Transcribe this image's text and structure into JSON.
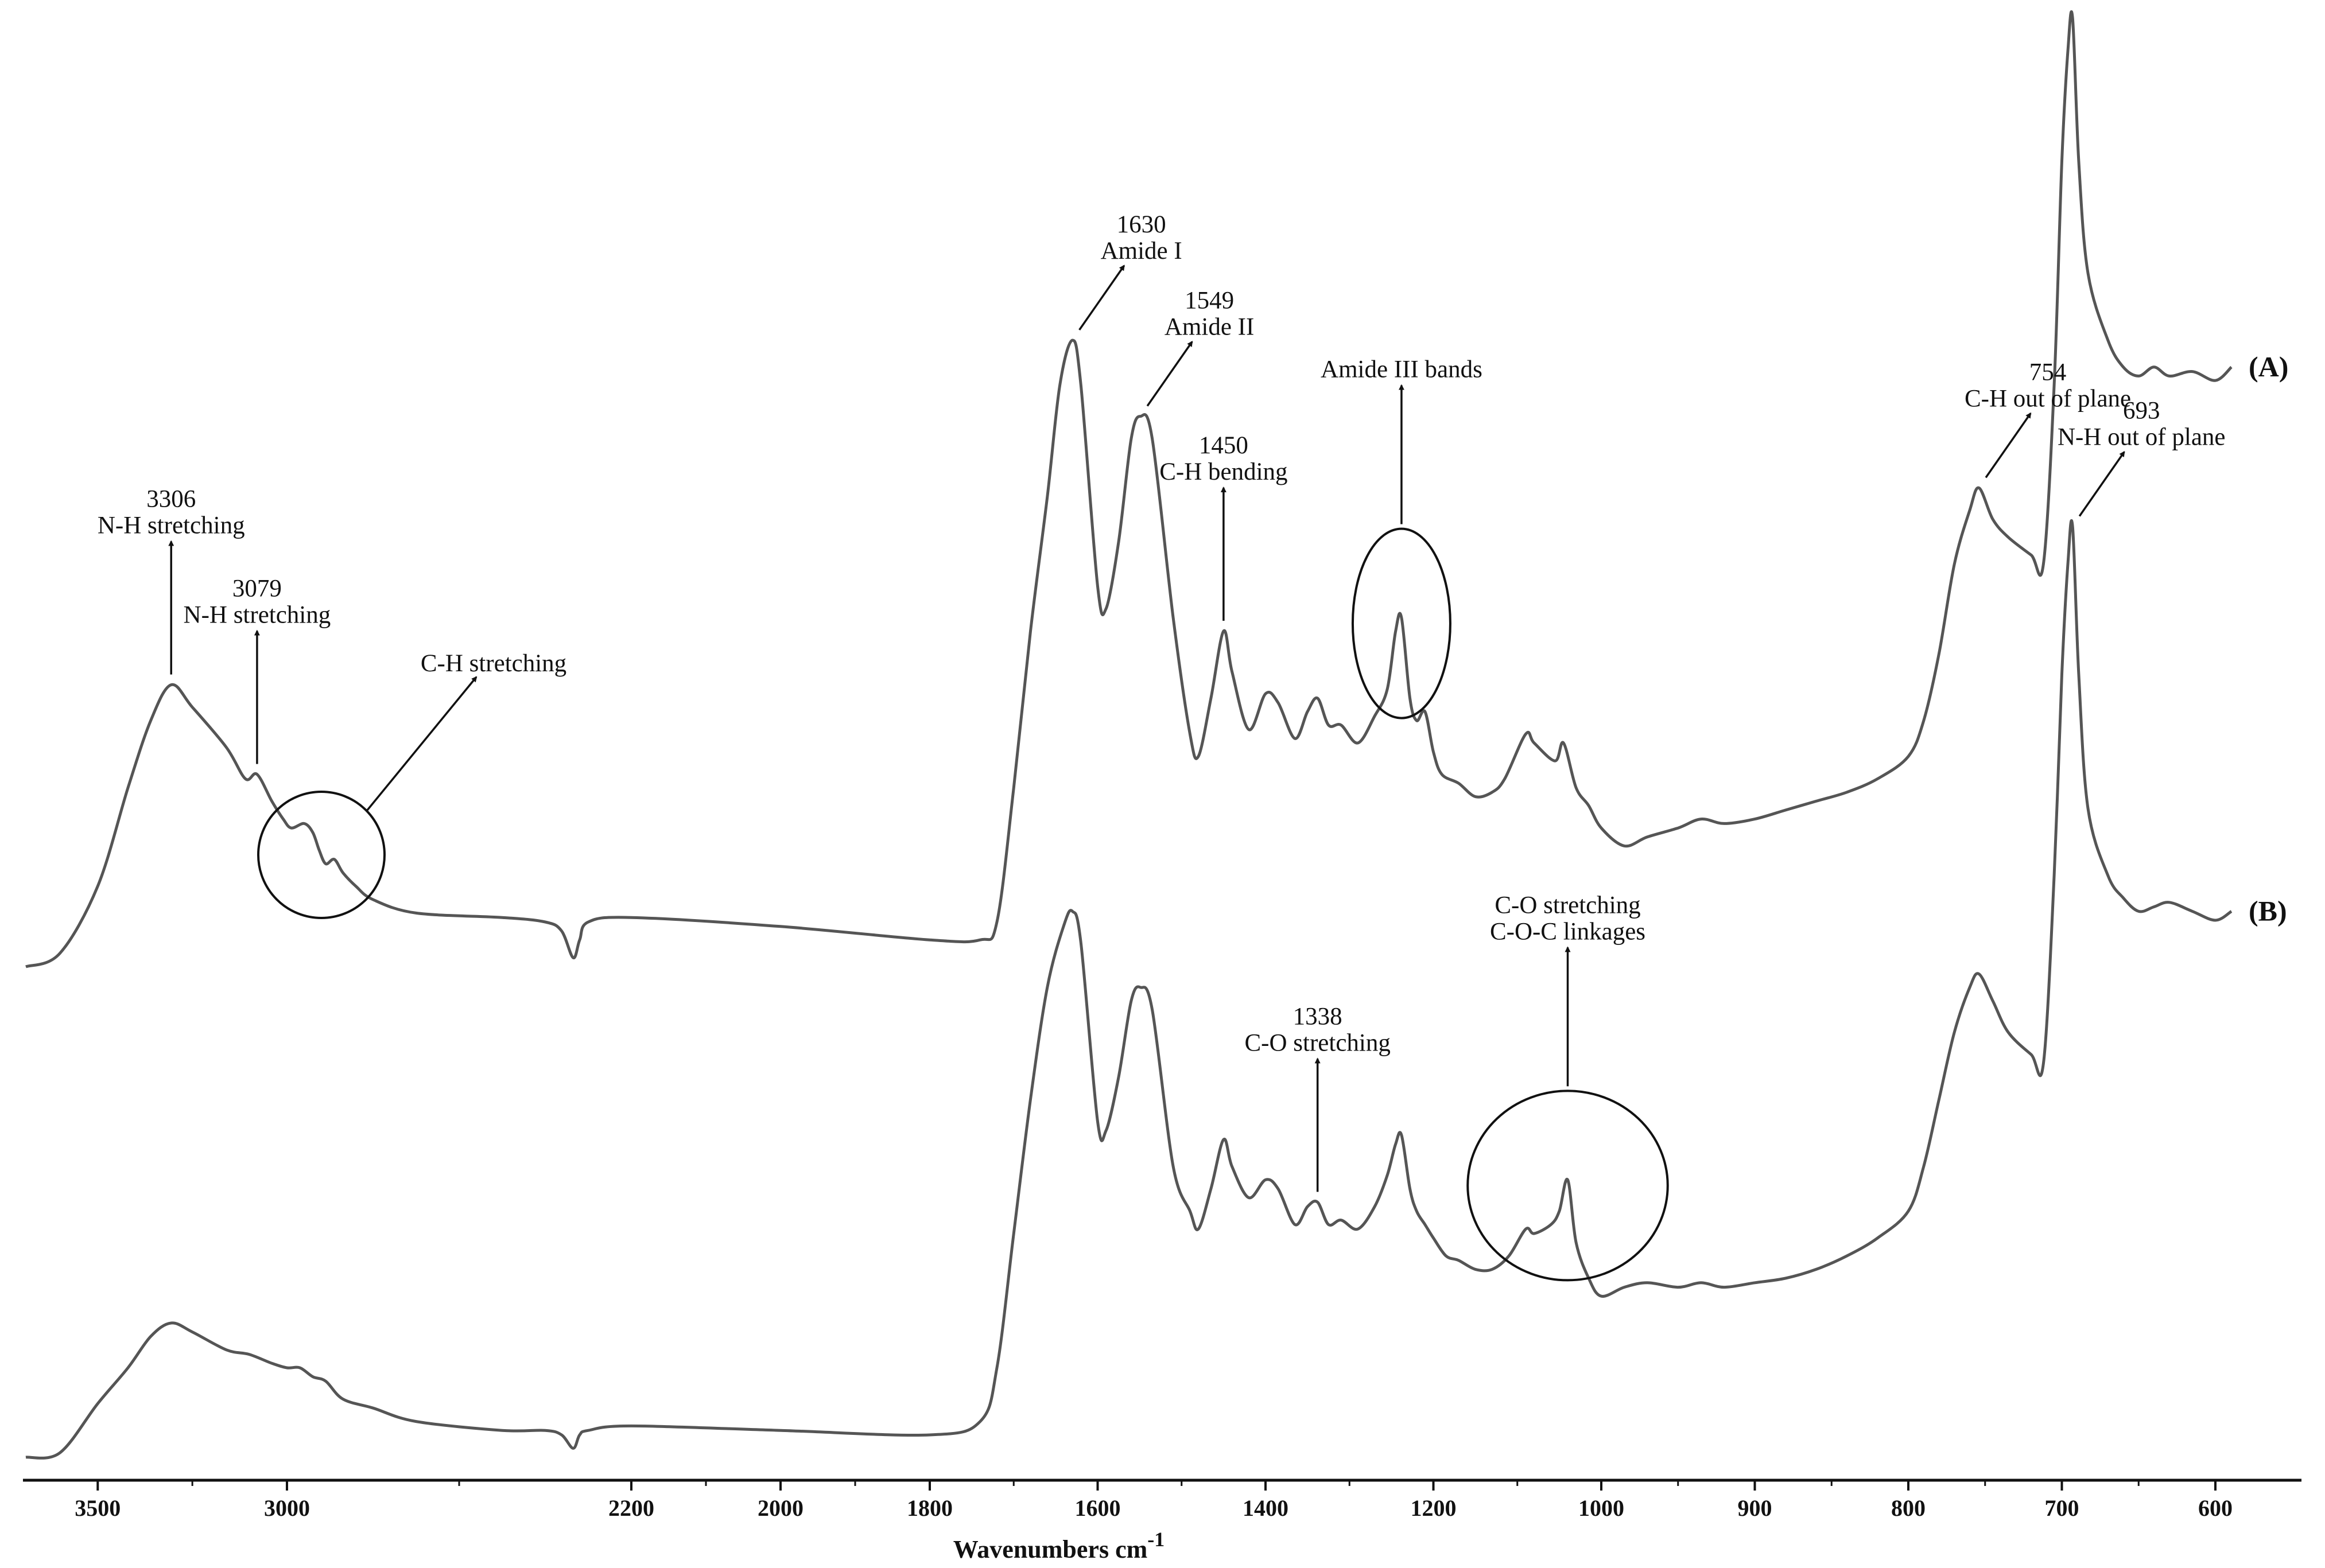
{
  "chart_data": {
    "type": "line",
    "title": "",
    "xlabel": "Wavenumbers cm",
    "xlabel_sup": "-1",
    "ylabel": "",
    "x_order": "descending",
    "x_axis_breaks": [
      3000,
      2200,
      1000
    ],
    "grid": false,
    "legend": "none",
    "ticks": [
      "3500",
      "3000",
      "2200",
      "2000",
      "1800",
      "1600",
      "1400",
      "1200",
      "1000",
      "900",
      "800",
      "700",
      "600"
    ],
    "series": [
      {
        "name": "(A)",
        "points": [
          [
            3690,
            0.0
          ],
          [
            3600,
            0.03
          ],
          [
            3500,
            0.18
          ],
          [
            3420,
            0.4
          ],
          [
            3360,
            0.55
          ],
          [
            3306,
            0.63
          ],
          [
            3250,
            0.58
          ],
          [
            3160,
            0.49
          ],
          [
            3110,
            0.42
          ],
          [
            3079,
            0.43
          ],
          [
            3040,
            0.37
          ],
          [
            3010,
            0.33
          ],
          [
            2990,
            0.31
          ],
          [
            2960,
            0.32
          ],
          [
            2940,
            0.3
          ],
          [
            2925,
            0.26
          ],
          [
            2910,
            0.23
          ],
          [
            2890,
            0.24
          ],
          [
            2870,
            0.21
          ],
          [
            2840,
            0.18
          ],
          [
            2800,
            0.15
          ],
          [
            2700,
            0.12
          ],
          [
            2500,
            0.11
          ],
          [
            2400,
            0.1
          ],
          [
            2362,
            0.08
          ],
          [
            2335,
            0.02
          ],
          [
            2320,
            0.06
          ],
          [
            2300,
            0.1
          ],
          [
            2200,
            0.11
          ],
          [
            2000,
            0.09
          ],
          [
            1800,
            0.06
          ],
          [
            1740,
            0.06
          ],
          [
            1720,
            0.1
          ],
          [
            1700,
            0.4
          ],
          [
            1680,
            0.75
          ],
          [
            1660,
            1.05
          ],
          [
            1645,
            1.3
          ],
          [
            1630,
            1.4
          ],
          [
            1620,
            1.3
          ],
          [
            1600,
            0.85
          ],
          [
            1590,
            0.8
          ],
          [
            1575,
            0.95
          ],
          [
            1560,
            1.18
          ],
          [
            1549,
            1.23
          ],
          [
            1535,
            1.18
          ],
          [
            1510,
            0.78
          ],
          [
            1490,
            0.52
          ],
          [
            1480,
            0.47
          ],
          [
            1465,
            0.6
          ],
          [
            1450,
            0.75
          ],
          [
            1440,
            0.66
          ],
          [
            1420,
            0.53
          ],
          [
            1400,
            0.61
          ],
          [
            1385,
            0.59
          ],
          [
            1365,
            0.51
          ],
          [
            1350,
            0.57
          ],
          [
            1338,
            0.6
          ],
          [
            1325,
            0.54
          ],
          [
            1310,
            0.54
          ],
          [
            1290,
            0.5
          ],
          [
            1270,
            0.56
          ],
          [
            1255,
            0.62
          ],
          [
            1245,
            0.75
          ],
          [
            1238,
            0.78
          ],
          [
            1228,
            0.6
          ],
          [
            1220,
            0.55
          ],
          [
            1210,
            0.57
          ],
          [
            1200,
            0.48
          ],
          [
            1190,
            0.43
          ],
          [
            1170,
            0.41
          ],
          [
            1150,
            0.38
          ],
          [
            1130,
            0.39
          ],
          [
            1115,
            0.42
          ],
          [
            1090,
            0.52
          ],
          [
            1080,
            0.5
          ],
          [
            1055,
            0.46
          ],
          [
            1045,
            0.5
          ],
          [
            1030,
            0.4
          ],
          [
            1015,
            0.36
          ],
          [
            1000,
            0.31
          ],
          [
            985,
            0.27
          ],
          [
            970,
            0.29
          ],
          [
            950,
            0.31
          ],
          [
            935,
            0.33
          ],
          [
            920,
            0.32
          ],
          [
            900,
            0.33
          ],
          [
            880,
            0.35
          ],
          [
            860,
            0.37
          ],
          [
            840,
            0.39
          ],
          [
            820,
            0.42
          ],
          [
            800,
            0.47
          ],
          [
            790,
            0.55
          ],
          [
            780,
            0.7
          ],
          [
            770,
            0.9
          ],
          [
            760,
            1.02
          ],
          [
            754,
            1.07
          ],
          [
            745,
            1.0
          ],
          [
            735,
            0.96
          ],
          [
            720,
            0.92
          ],
          [
            712,
            0.9
          ],
          [
            705,
            1.3
          ],
          [
            700,
            1.8
          ],
          [
            696,
            2.05
          ],
          [
            693,
            2.12
          ],
          [
            689,
            1.8
          ],
          [
            683,
            1.55
          ],
          [
            670,
            1.4
          ],
          [
            660,
            1.34
          ],
          [
            650,
            1.32
          ],
          [
            640,
            1.34
          ],
          [
            630,
            1.32
          ],
          [
            615,
            1.33
          ],
          [
            600,
            1.31
          ],
          [
            590,
            1.34
          ]
        ]
      },
      {
        "name": "(B)",
        "points": [
          [
            3690,
            0.0
          ],
          [
            3600,
            0.01
          ],
          [
            3500,
            0.12
          ],
          [
            3420,
            0.2
          ],
          [
            3360,
            0.27
          ],
          [
            3306,
            0.3
          ],
          [
            3250,
            0.28
          ],
          [
            3160,
            0.24
          ],
          [
            3100,
            0.23
          ],
          [
            3040,
            0.21
          ],
          [
            3000,
            0.2
          ],
          [
            2970,
            0.2
          ],
          [
            2940,
            0.18
          ],
          [
            2910,
            0.17
          ],
          [
            2870,
            0.13
          ],
          [
            2800,
            0.11
          ],
          [
            2700,
            0.08
          ],
          [
            2500,
            0.06
          ],
          [
            2400,
            0.06
          ],
          [
            2362,
            0.05
          ],
          [
            2335,
            0.02
          ],
          [
            2320,
            0.05
          ],
          [
            2300,
            0.06
          ],
          [
            2200,
            0.07
          ],
          [
            2000,
            0.06
          ],
          [
            1800,
            0.05
          ],
          [
            1740,
            0.08
          ],
          [
            1720,
            0.2
          ],
          [
            1700,
            0.5
          ],
          [
            1680,
            0.8
          ],
          [
            1660,
            1.05
          ],
          [
            1640,
            1.19
          ],
          [
            1630,
            1.22
          ],
          [
            1620,
            1.15
          ],
          [
            1600,
            0.75
          ],
          [
            1590,
            0.73
          ],
          [
            1575,
            0.85
          ],
          [
            1560,
            1.02
          ],
          [
            1549,
            1.05
          ],
          [
            1535,
            1.0
          ],
          [
            1510,
            0.65
          ],
          [
            1490,
            0.55
          ],
          [
            1480,
            0.51
          ],
          [
            1465,
            0.6
          ],
          [
            1450,
            0.71
          ],
          [
            1440,
            0.65
          ],
          [
            1420,
            0.58
          ],
          [
            1400,
            0.62
          ],
          [
            1385,
            0.6
          ],
          [
            1365,
            0.52
          ],
          [
            1350,
            0.56
          ],
          [
            1338,
            0.57
          ],
          [
            1325,
            0.52
          ],
          [
            1310,
            0.53
          ],
          [
            1290,
            0.51
          ],
          [
            1270,
            0.56
          ],
          [
            1255,
            0.63
          ],
          [
            1245,
            0.7
          ],
          [
            1238,
            0.72
          ],
          [
            1228,
            0.6
          ],
          [
            1220,
            0.55
          ],
          [
            1210,
            0.52
          ],
          [
            1200,
            0.49
          ],
          [
            1185,
            0.45
          ],
          [
            1170,
            0.44
          ],
          [
            1150,
            0.42
          ],
          [
            1130,
            0.42
          ],
          [
            1110,
            0.45
          ],
          [
            1090,
            0.51
          ],
          [
            1080,
            0.5
          ],
          [
            1060,
            0.52
          ],
          [
            1050,
            0.55
          ],
          [
            1040,
            0.62
          ],
          [
            1030,
            0.48
          ],
          [
            1015,
            0.4
          ],
          [
            1000,
            0.36
          ],
          [
            985,
            0.38
          ],
          [
            970,
            0.39
          ],
          [
            950,
            0.38
          ],
          [
            935,
            0.39
          ],
          [
            920,
            0.38
          ],
          [
            900,
            0.39
          ],
          [
            880,
            0.4
          ],
          [
            860,
            0.42
          ],
          [
            840,
            0.45
          ],
          [
            820,
            0.49
          ],
          [
            800,
            0.55
          ],
          [
            790,
            0.65
          ],
          [
            780,
            0.8
          ],
          [
            770,
            0.95
          ],
          [
            760,
            1.05
          ],
          [
            754,
            1.08
          ],
          [
            745,
            1.02
          ],
          [
            735,
            0.95
          ],
          [
            720,
            0.9
          ],
          [
            712,
            0.88
          ],
          [
            705,
            1.3
          ],
          [
            700,
            1.75
          ],
          [
            696,
            2.0
          ],
          [
            693,
            2.08
          ],
          [
            689,
            1.75
          ],
          [
            683,
            1.45
          ],
          [
            670,
            1.3
          ],
          [
            660,
            1.25
          ],
          [
            650,
            1.22
          ],
          [
            640,
            1.23
          ],
          [
            630,
            1.24
          ],
          [
            615,
            1.22
          ],
          [
            600,
            1.2
          ],
          [
            590,
            1.22
          ]
        ]
      }
    ],
    "annotations": [
      {
        "series": "(A)",
        "x": 3306,
        "lines": [
          "3306",
          "N-H stretching"
        ],
        "style": "vertical-arrow"
      },
      {
        "series": "(A)",
        "x": 3079,
        "lines": [
          "3079",
          "N-H stretching"
        ],
        "style": "vertical-arrow"
      },
      {
        "series": "(A)",
        "x": 2920,
        "lines": [
          "C-H stretching"
        ],
        "style": "circle-diagonal-arrow"
      },
      {
        "series": "(A)",
        "x": 1630,
        "lines": [
          "1630",
          "Amide I"
        ],
        "style": "diagonal-arrow"
      },
      {
        "series": "(A)",
        "x": 1549,
        "lines": [
          "1549",
          "Amide II"
        ],
        "style": "diagonal-arrow"
      },
      {
        "series": "(A)",
        "x": 1450,
        "lines": [
          "1450",
          "C-H bending"
        ],
        "style": "vertical-arrow"
      },
      {
        "series": "(A)",
        "x": 1238,
        "lines": [
          "Amide III bands"
        ],
        "style": "circle-vertical-arrow"
      },
      {
        "series": "(A)",
        "x": 754,
        "lines": [
          "754",
          "C-H out of plane"
        ],
        "style": "diagonal-arrow"
      },
      {
        "series": "(B)",
        "x": 693,
        "lines": [
          "693",
          "N-H out of plane"
        ],
        "style": "diagonal-arrow"
      },
      {
        "series": "(B)",
        "x": 1338,
        "lines": [
          "1338",
          "C-O stretching"
        ],
        "style": "vertical-arrow"
      },
      {
        "series": "(B)",
        "x": 1040,
        "lines": [
          "C-O stretching",
          "C-O-C linkages"
        ],
        "style": "circle-vertical-arrow"
      }
    ]
  }
}
